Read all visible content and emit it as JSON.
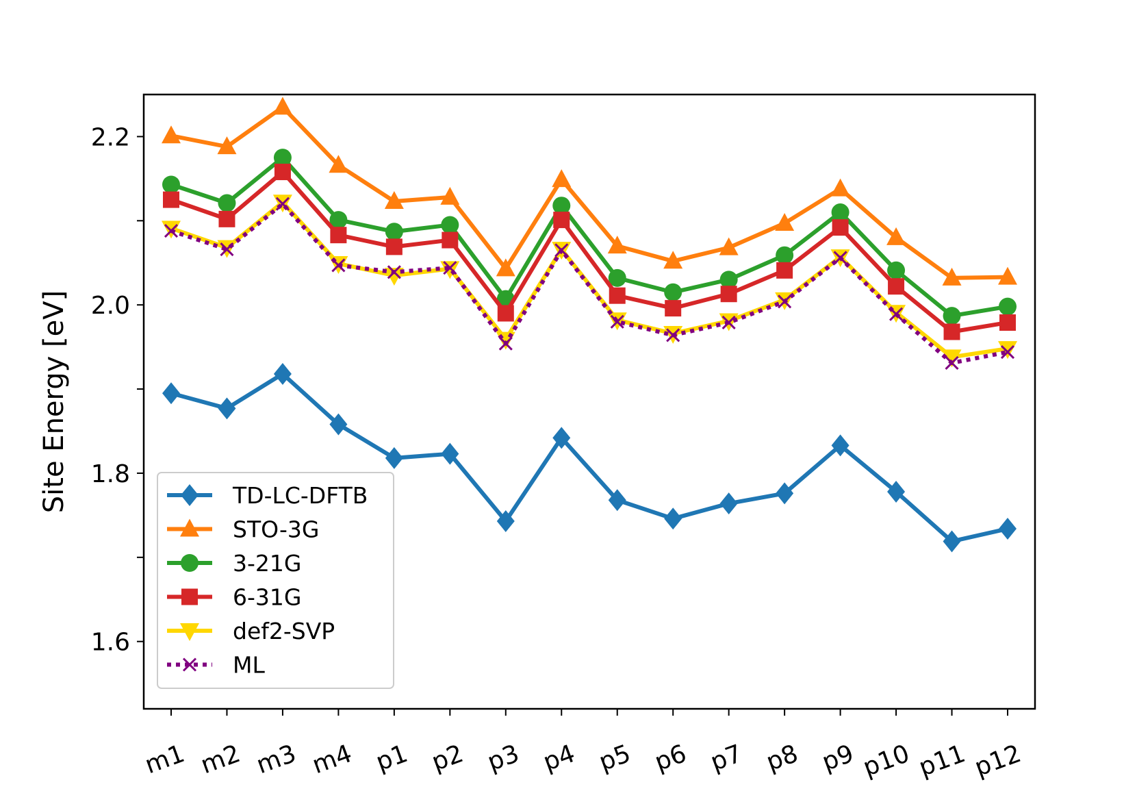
{
  "chart_data": {
    "type": "line",
    "title": "",
    "xlabel": "",
    "ylabel": "Site Energy [eV]",
    "categories": [
      "m1",
      "m2",
      "m3",
      "m4",
      "p1",
      "p2",
      "p3",
      "p4",
      "p5",
      "p6",
      "p7",
      "p8",
      "p9",
      "p10",
      "p11",
      "p12"
    ],
    "ylim": [
      1.52,
      2.25
    ],
    "yticks": [
      1.6,
      1.8,
      2.0,
      2.2
    ],
    "yticks_labeled": [
      "1.6",
      "1.8",
      "2.0",
      "2.2"
    ],
    "grid": false,
    "legend_position": "lower-left",
    "series": [
      {
        "name": "TD-LC-DFTB",
        "color": "#1f77b4",
        "marker": "diamond",
        "linestyle": "solid",
        "values": [
          1.895,
          1.877,
          1.918,
          1.858,
          1.818,
          1.823,
          1.743,
          1.842,
          1.768,
          1.746,
          1.764,
          1.776,
          1.833,
          1.778,
          1.719,
          1.734
        ]
      },
      {
        "name": "STO-3G",
        "color": "#ff7f0e",
        "marker": "triangle-up",
        "linestyle": "solid",
        "values": [
          2.201,
          2.188,
          2.235,
          2.166,
          2.123,
          2.128,
          2.043,
          2.149,
          2.07,
          2.052,
          2.068,
          2.097,
          2.138,
          2.08,
          2.032,
          2.033
        ]
      },
      {
        "name": "3-21G",
        "color": "#2ca02c",
        "marker": "circle",
        "linestyle": "solid",
        "values": [
          2.143,
          2.121,
          2.175,
          2.101,
          2.087,
          2.095,
          2.007,
          2.118,
          2.032,
          2.015,
          2.03,
          2.059,
          2.11,
          2.041,
          1.987,
          1.998
        ]
      },
      {
        "name": "6-31G",
        "color": "#d62728",
        "marker": "square",
        "linestyle": "solid",
        "values": [
          2.125,
          2.102,
          2.158,
          2.083,
          2.069,
          2.077,
          1.99,
          2.101,
          2.011,
          1.996,
          2.013,
          2.041,
          2.092,
          2.022,
          1.968,
          1.979
        ]
      },
      {
        "name": "def2-SVP",
        "color": "#ffd700",
        "marker": "triangle-down",
        "linestyle": "solid",
        "values": [
          2.091,
          2.068,
          2.122,
          2.049,
          2.035,
          2.043,
          1.959,
          2.066,
          1.982,
          1.966,
          1.981,
          2.006,
          2.057,
          1.991,
          1.938,
          1.948
        ]
      },
      {
        "name": "ML",
        "color": "#800080",
        "marker": "x",
        "linestyle": "dotted",
        "values": [
          2.088,
          2.066,
          2.12,
          2.047,
          2.039,
          2.044,
          1.954,
          2.065,
          1.98,
          1.964,
          1.979,
          2.004,
          2.056,
          1.989,
          1.931,
          1.944
        ]
      }
    ]
  }
}
